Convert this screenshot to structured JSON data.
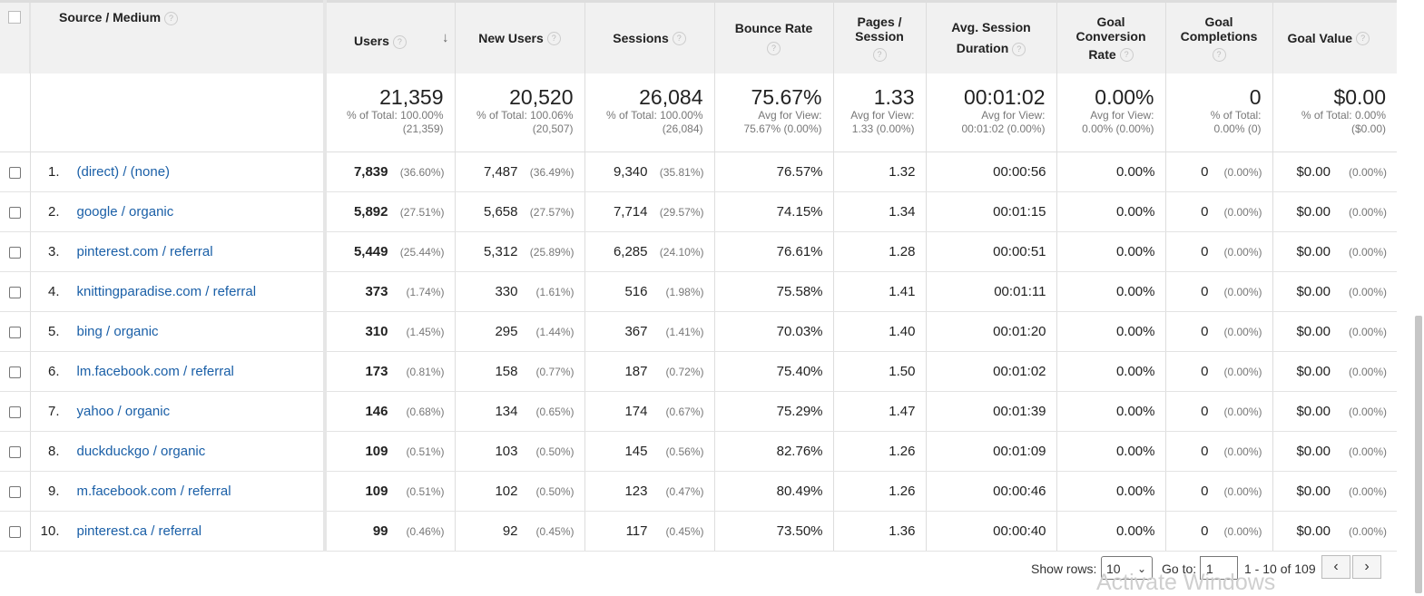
{
  "headers": {
    "source_medium": "Source / Medium",
    "users": "Users",
    "new_users": "New Users",
    "sessions": "Sessions",
    "bounce_rate": "Bounce Rate",
    "pages_session": [
      "Pages /",
      "Session"
    ],
    "avg_duration": [
      "Avg. Session",
      "Duration"
    ],
    "goal_conv": [
      "Goal",
      "Conversion",
      "Rate"
    ],
    "goal_comp": [
      "Goal",
      "Completions"
    ],
    "goal_value": "Goal Value",
    "help_glyph": "?",
    "sort_glyph": "↓"
  },
  "totals": {
    "users": {
      "value": "21,359",
      "sub1": "% of Total: 100.00%",
      "sub2": "(21,359)"
    },
    "new_users": {
      "value": "20,520",
      "sub1": "% of Total: 100.06%",
      "sub2": "(20,507)"
    },
    "sessions": {
      "value": "26,084",
      "sub1": "% of Total: 100.00%",
      "sub2": "(26,084)"
    },
    "bounce_rate": {
      "value": "75.67%",
      "sub1": "Avg for View:",
      "sub2": "75.67% (0.00%)"
    },
    "pages_session": {
      "value": "1.33",
      "sub1": "Avg for View:",
      "sub2": "1.33 (0.00%)"
    },
    "avg_duration": {
      "value": "00:01:02",
      "sub1": "Avg for View:",
      "sub2": "00:01:02 (0.00%)"
    },
    "goal_conv": {
      "value": "0.00%",
      "sub1": "Avg for View:",
      "sub2": "0.00% (0.00%)"
    },
    "goal_comp": {
      "value": "0",
      "sub1": "% of Total:",
      "sub2": "0.00% (0)"
    },
    "goal_value": {
      "value": "$0.00",
      "sub1": "% of Total: 0.00%",
      "sub2": "($0.00)"
    }
  },
  "rows": [
    {
      "num": "1.",
      "source": "(direct) / (none)",
      "users": "7,839",
      "users_pct": "(36.60%)",
      "new_users": "7,487",
      "new_users_pct": "(36.49%)",
      "sessions": "9,340",
      "sessions_pct": "(35.81%)",
      "bounce": "76.57%",
      "pages": "1.32",
      "duration": "00:00:56",
      "conv": "0.00%",
      "comp": "0",
      "comp_pct": "(0.00%)",
      "value": "$0.00",
      "value_pct": "(0.00%)"
    },
    {
      "num": "2.",
      "source": "google / organic",
      "users": "5,892",
      "users_pct": "(27.51%)",
      "new_users": "5,658",
      "new_users_pct": "(27.57%)",
      "sessions": "7,714",
      "sessions_pct": "(29.57%)",
      "bounce": "74.15%",
      "pages": "1.34",
      "duration": "00:01:15",
      "conv": "0.00%",
      "comp": "0",
      "comp_pct": "(0.00%)",
      "value": "$0.00",
      "value_pct": "(0.00%)"
    },
    {
      "num": "3.",
      "source": "pinterest.com / referral",
      "users": "5,449",
      "users_pct": "(25.44%)",
      "new_users": "5,312",
      "new_users_pct": "(25.89%)",
      "sessions": "6,285",
      "sessions_pct": "(24.10%)",
      "bounce": "76.61%",
      "pages": "1.28",
      "duration": "00:00:51",
      "conv": "0.00%",
      "comp": "0",
      "comp_pct": "(0.00%)",
      "value": "$0.00",
      "value_pct": "(0.00%)"
    },
    {
      "num": "4.",
      "source": "knittingparadise.com / referral",
      "users": "373",
      "users_pct": "(1.74%)",
      "new_users": "330",
      "new_users_pct": "(1.61%)",
      "sessions": "516",
      "sessions_pct": "(1.98%)",
      "bounce": "75.58%",
      "pages": "1.41",
      "duration": "00:01:11",
      "conv": "0.00%",
      "comp": "0",
      "comp_pct": "(0.00%)",
      "value": "$0.00",
      "value_pct": "(0.00%)"
    },
    {
      "num": "5.",
      "source": "bing / organic",
      "users": "310",
      "users_pct": "(1.45%)",
      "new_users": "295",
      "new_users_pct": "(1.44%)",
      "sessions": "367",
      "sessions_pct": "(1.41%)",
      "bounce": "70.03%",
      "pages": "1.40",
      "duration": "00:01:20",
      "conv": "0.00%",
      "comp": "0",
      "comp_pct": "(0.00%)",
      "value": "$0.00",
      "value_pct": "(0.00%)"
    },
    {
      "num": "6.",
      "source": "lm.facebook.com / referral",
      "users": "173",
      "users_pct": "(0.81%)",
      "new_users": "158",
      "new_users_pct": "(0.77%)",
      "sessions": "187",
      "sessions_pct": "(0.72%)",
      "bounce": "75.40%",
      "pages": "1.50",
      "duration": "00:01:02",
      "conv": "0.00%",
      "comp": "0",
      "comp_pct": "(0.00%)",
      "value": "$0.00",
      "value_pct": "(0.00%)"
    },
    {
      "num": "7.",
      "source": "yahoo / organic",
      "users": "146",
      "users_pct": "(0.68%)",
      "new_users": "134",
      "new_users_pct": "(0.65%)",
      "sessions": "174",
      "sessions_pct": "(0.67%)",
      "bounce": "75.29%",
      "pages": "1.47",
      "duration": "00:01:39",
      "conv": "0.00%",
      "comp": "0",
      "comp_pct": "(0.00%)",
      "value": "$0.00",
      "value_pct": "(0.00%)"
    },
    {
      "num": "8.",
      "source": "duckduckgo / organic",
      "users": "109",
      "users_pct": "(0.51%)",
      "new_users": "103",
      "new_users_pct": "(0.50%)",
      "sessions": "145",
      "sessions_pct": "(0.56%)",
      "bounce": "82.76%",
      "pages": "1.26",
      "duration": "00:01:09",
      "conv": "0.00%",
      "comp": "0",
      "comp_pct": "(0.00%)",
      "value": "$0.00",
      "value_pct": "(0.00%)"
    },
    {
      "num": "9.",
      "source": "m.facebook.com / referral",
      "users": "109",
      "users_pct": "(0.51%)",
      "new_users": "102",
      "new_users_pct": "(0.50%)",
      "sessions": "123",
      "sessions_pct": "(0.47%)",
      "bounce": "80.49%",
      "pages": "1.26",
      "duration": "00:00:46",
      "conv": "0.00%",
      "comp": "0",
      "comp_pct": "(0.00%)",
      "value": "$0.00",
      "value_pct": "(0.00%)"
    },
    {
      "num": "10.",
      "source": "pinterest.ca / referral",
      "users": "99",
      "users_pct": "(0.46%)",
      "new_users": "92",
      "new_users_pct": "(0.45%)",
      "sessions": "117",
      "sessions_pct": "(0.45%)",
      "bounce": "73.50%",
      "pages": "1.36",
      "duration": "00:00:40",
      "conv": "0.00%",
      "comp": "0",
      "comp_pct": "(0.00%)",
      "value": "$0.00",
      "value_pct": "(0.00%)"
    }
  ],
  "pager": {
    "show_rows_label": "Show rows:",
    "show_rows_value": "10",
    "goto_label": "Go to:",
    "goto_value": "1",
    "range": "1 - 10 of 109",
    "prev_glyph": "‹",
    "next_glyph": "›"
  },
  "watermark": "Activate Windows",
  "colors": {
    "link": "#1a5fa7",
    "header_bg": "#f1f1f1"
  }
}
